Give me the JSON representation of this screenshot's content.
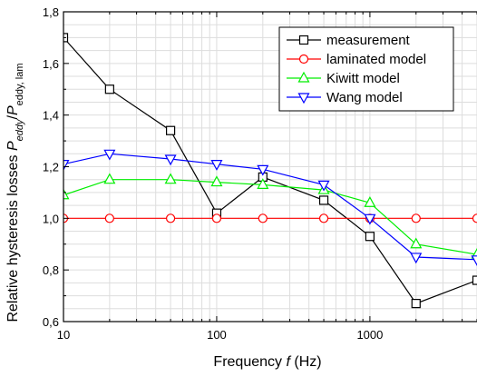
{
  "chart_data": {
    "type": "line",
    "x_scale": "log",
    "xlim": [
      10,
      5000
    ],
    "ylim": [
      0.6,
      1.8
    ],
    "grid": true,
    "legend_position": "top-right",
    "x_ticks": [
      {
        "value": 10,
        "label": "10"
      },
      {
        "value": 100,
        "label": "100"
      },
      {
        "value": 1000,
        "label": "1000"
      }
    ],
    "y_ticks": [
      {
        "value": 0.6,
        "label": "0,6"
      },
      {
        "value": 0.8,
        "label": "0,8"
      },
      {
        "value": 1.0,
        "label": "1,0"
      },
      {
        "value": 1.2,
        "label": "1,2"
      },
      {
        "value": 1.4,
        "label": "1,4"
      },
      {
        "value": 1.6,
        "label": "1,6"
      },
      {
        "value": 1.8,
        "label": "1,8"
      }
    ],
    "xlabel": {
      "prefix": "Frequency ",
      "symbol": "f",
      "suffix": " (Hz)"
    },
    "ylabel": {
      "prefix": "Relative hysteresis losses ",
      "num": "P",
      "num_sub": "eddy",
      "sep": "/",
      "den": "P",
      "den_sub": "eddy, lam"
    },
    "series": [
      {
        "name": "measurement",
        "color": "#000000",
        "marker": "square",
        "x": [
          10,
          20,
          50,
          100,
          200,
          500,
          1000,
          2000,
          5000
        ],
        "y": [
          1.7,
          1.5,
          1.34,
          1.02,
          1.16,
          1.07,
          0.93,
          0.67,
          0.76
        ]
      },
      {
        "name": "laminated model",
        "color": "#ff0000",
        "marker": "circle",
        "x": [
          10,
          20,
          50,
          100,
          200,
          500,
          1000,
          2000,
          5000
        ],
        "y": [
          1.0,
          1.0,
          1.0,
          1.0,
          1.0,
          1.0,
          1.0,
          1.0,
          1.0
        ]
      },
      {
        "name": "Kiwitt model",
        "color": "#00ee00",
        "marker": "triangle-up",
        "x": [
          10,
          20,
          50,
          100,
          200,
          500,
          1000,
          2000,
          5000
        ],
        "y": [
          1.09,
          1.15,
          1.15,
          1.14,
          1.13,
          1.11,
          1.06,
          0.9,
          0.86
        ]
      },
      {
        "name": "Wang model",
        "color": "#0000ff",
        "marker": "triangle-down",
        "x": [
          10,
          20,
          50,
          100,
          200,
          500,
          1000,
          2000,
          5000
        ],
        "y": [
          1.21,
          1.25,
          1.23,
          1.21,
          1.19,
          1.13,
          1.0,
          0.85,
          0.84
        ]
      }
    ]
  }
}
